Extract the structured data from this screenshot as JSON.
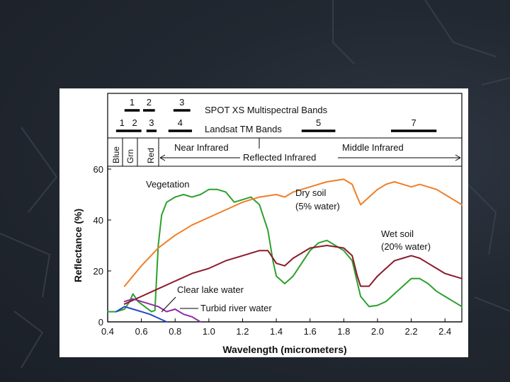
{
  "slide": {
    "background": "#222831"
  },
  "chart_data": {
    "type": "line",
    "xlabel": "Wavelength (micrometers)",
    "ylabel": "Reflectance (%)",
    "xlim": [
      0.4,
      2.5
    ],
    "ylim": [
      0,
      60
    ],
    "xticks": [
      "0.4",
      "0.6",
      "0.8",
      "1.0",
      "1.2",
      "1.4",
      "1.6",
      "1.8",
      "2.0",
      "2.2",
      "2.4"
    ],
    "yticks": [
      "0",
      "20",
      "40",
      "60"
    ],
    "grid": false,
    "series": [
      {
        "name": "Vegetation",
        "color": "#2ca02c",
        "x": [
          0.4,
          0.45,
          0.5,
          0.53,
          0.55,
          0.58,
          0.62,
          0.66,
          0.68,
          0.7,
          0.72,
          0.75,
          0.8,
          0.85,
          0.9,
          0.95,
          1.0,
          1.05,
          1.1,
          1.15,
          1.2,
          1.25,
          1.3,
          1.35,
          1.38,
          1.4,
          1.45,
          1.5,
          1.55,
          1.6,
          1.65,
          1.7,
          1.75,
          1.8,
          1.85,
          1.9,
          1.95,
          2.0,
          2.05,
          2.1,
          2.15,
          2.2,
          2.25,
          2.3,
          2.35,
          2.4,
          2.45,
          2.5
        ],
        "y": [
          4,
          4,
          5,
          8,
          11,
          8,
          6,
          4,
          4.5,
          30,
          42,
          47,
          49,
          50,
          49,
          50,
          52,
          52,
          51,
          47,
          48,
          49,
          46,
          36,
          24,
          18,
          15,
          18,
          23,
          28,
          31,
          32,
          30,
          28,
          24,
          10,
          6,
          6.5,
          8,
          11,
          14,
          17,
          17,
          15,
          12,
          10,
          8,
          6
        ]
      },
      {
        "name": "Dry soil (5% water)",
        "color": "#f07e26",
        "x": [
          0.5,
          0.6,
          0.7,
          0.8,
          0.9,
          1.0,
          1.1,
          1.2,
          1.3,
          1.4,
          1.45,
          1.5,
          1.6,
          1.7,
          1.8,
          1.85,
          1.88,
          1.9,
          1.95,
          2.0,
          2.05,
          2.1,
          2.15,
          2.2,
          2.25,
          2.3,
          2.35,
          2.4,
          2.45,
          2.5
        ],
        "y": [
          14,
          22,
          29,
          34,
          38,
          41,
          44,
          47,
          49,
          50,
          49,
          51,
          53,
          55,
          56,
          54,
          49,
          46,
          49,
          52,
          54,
          55,
          54,
          53,
          54,
          53,
          52,
          50,
          48,
          46
        ]
      },
      {
        "name": "Wet soil (20% water)",
        "color": "#8b1a2a",
        "x": [
          0.5,
          0.6,
          0.7,
          0.8,
          0.9,
          1.0,
          1.1,
          1.2,
          1.3,
          1.35,
          1.4,
          1.45,
          1.5,
          1.6,
          1.7,
          1.8,
          1.85,
          1.88,
          1.9,
          1.95,
          2.0,
          2.05,
          2.1,
          2.15,
          2.2,
          2.25,
          2.3,
          2.35,
          2.4,
          2.45,
          2.5
        ],
        "y": [
          7,
          10,
          13,
          16,
          19,
          21,
          24,
          26,
          28,
          28,
          23,
          22,
          25,
          29,
          30,
          29,
          26,
          18,
          14,
          14,
          18,
          21,
          24,
          25,
          26,
          25,
          23,
          21,
          19,
          18,
          17
        ]
      },
      {
        "name": "Clear lake water",
        "color": "#2546c8",
        "x": [
          0.45,
          0.5,
          0.55,
          0.6,
          0.65,
          0.7,
          0.75
        ],
        "y": [
          4,
          6,
          5,
          4,
          3,
          1.5,
          0
        ]
      },
      {
        "name": "Turbid river water",
        "color": "#8e2aa5",
        "x": [
          0.5,
          0.55,
          0.6,
          0.65,
          0.7,
          0.75,
          0.8,
          0.85,
          0.9,
          0.95
        ],
        "y": [
          8,
          9,
          8,
          7,
          6,
          4,
          5,
          3,
          2,
          0
        ]
      }
    ],
    "annotations": [
      {
        "text": "Vegetation",
        "lines": [
          "Vegetation"
        ]
      },
      {
        "text": "Dry soil (5% water)",
        "lines": [
          "Dry soil",
          "(5% water)"
        ]
      },
      {
        "text": "Wet soil (20% water)",
        "lines": [
          "Wet soil",
          "(20% water)"
        ]
      },
      {
        "text": "Clear lake water",
        "lines": [
          "Clear lake water"
        ]
      },
      {
        "text": "Turbid river water",
        "lines": [
          "Turbid river water"
        ]
      }
    ],
    "spot_bands": {
      "label": "SPOT XS Multispectral Bands",
      "bands": [
        {
          "label": "1",
          "range": [
            0.5,
            0.59
          ]
        },
        {
          "label": "2",
          "range": [
            0.61,
            0.68
          ]
        },
        {
          "label": "3",
          "range": [
            0.79,
            0.89
          ]
        }
      ]
    },
    "landsat_bands": {
      "label": "Landsat TM Bands",
      "bands": [
        {
          "label": "1",
          "range": [
            0.45,
            0.52
          ]
        },
        {
          "label": "2",
          "range": [
            0.52,
            0.6
          ]
        },
        {
          "label": "3",
          "range": [
            0.63,
            0.69
          ]
        },
        {
          "label": "4",
          "range": [
            0.76,
            0.9
          ]
        },
        {
          "label": "5",
          "range": [
            1.55,
            1.75
          ]
        },
        {
          "label": "7",
          "range": [
            2.08,
            2.35
          ]
        }
      ]
    },
    "regions": {
      "blue": "Blue",
      "green": "Grn",
      "red": "Red",
      "near_infrared": "Near Infrared",
      "middle_infrared": "Middle Infrared",
      "reflected_infrared": "Reflected Infrared"
    }
  }
}
